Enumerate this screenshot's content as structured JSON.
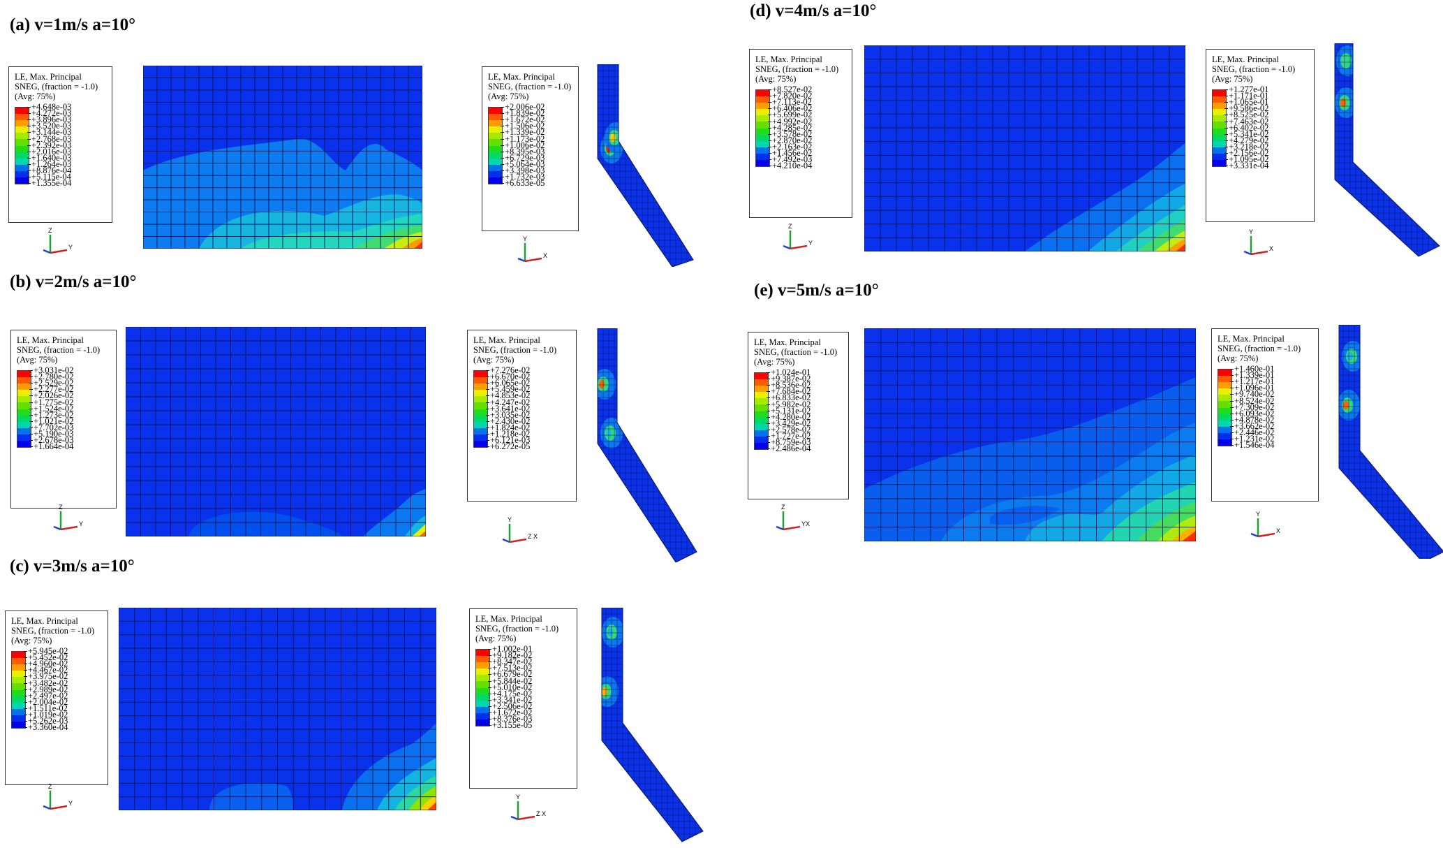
{
  "legend_header": [
    "LE, Max. Principal",
    "SNEG, (fraction = -1.0)",
    "(Avg: 75%)"
  ],
  "legend_colors": [
    "#ff0000",
    "#ff5a00",
    "#ff9d00",
    "#ffd000",
    "#e8f000",
    "#a6ea00",
    "#63e000",
    "#1fdd1c",
    "#00da64",
    "#00d6b0",
    "#00b2e6",
    "#0072ea",
    "#0030ee",
    "#0000ee"
  ],
  "panels": [
    {
      "id": "a",
      "title": "(a) v=1m/s a=10°",
      "triad_left": "Z Y",
      "triad_right": "Y X",
      "legend_left": [
        "+4.648e-03",
        "+4.272e-03",
        "+3.896e-03",
        "+3.520e-03",
        "+3.144e-03",
        "+2.768e-03",
        "+2.392e-03",
        "+2.016e-03",
        "+1.640e-03",
        "+1.264e-03",
        "+8.876e-04",
        "+5.115e-04",
        "+1.355e-04"
      ],
      "legend_right": [
        "+2.006e-02",
        "+1.839e-02",
        "+1.672e-02",
        "+1.506e-02",
        "+1.339e-02",
        "+1.173e-02",
        "+1.006e-02",
        "+8.395e-03",
        "+6.729e-03",
        "+5.064e-03",
        "+3.398e-03",
        "+1.732e-03",
        "+6.633e-05"
      ]
    },
    {
      "id": "b",
      "title": "(b) v=2m/s a=10°",
      "triad_left": "Z Y",
      "triad_right": "Y Z X",
      "legend_left": [
        "+3.031e-02",
        "+2.780e-02",
        "+2.529e-02",
        "+2.277e-02",
        "+2.026e-02",
        "+1.775e-02",
        "+1.524e-02",
        "+1.273e-02",
        "+1.021e-02",
        "+7.702e-03",
        "+5.190e-03",
        "+2.678e-03",
        "+1.664e-04"
      ],
      "legend_right": [
        "+7.276e-02",
        "+6.670e-02",
        "+6.065e-02",
        "+5.459e-02",
        "+4.853e-02",
        "+4.247e-02",
        "+3.641e-02",
        "+3.035e-02",
        "+2.430e-02",
        "+1.824e-02",
        "+1.218e-02",
        "+6.121e-03",
        "+6.272e-05"
      ]
    },
    {
      "id": "c",
      "title": "(c) v=3m/s a=10°",
      "triad_left": "Z Y",
      "triad_right": "Y Z X",
      "legend_left": [
        "+5.945e-02",
        "+5.452e-02",
        "+4.960e-02",
        "+4.467e-02",
        "+3.975e-02",
        "+3.482e-02",
        "+2.989e-02",
        "+2.497e-02",
        "+2.004e-02",
        "+1.511e-02",
        "+1.019e-02",
        "+5.262e-03",
        "+3.360e-04"
      ],
      "legend_right": [
        "+1.002e-01",
        "+9.182e-02",
        "+8.347e-02",
        "+7.513e-02",
        "+6.679e-02",
        "+5.844e-02",
        "+5.010e-02",
        "+4.175e-02",
        "+3.341e-02",
        "+2.506e-02",
        "+1.672e-02",
        "+8.376e-03",
        "+3.155e-05"
      ]
    },
    {
      "id": "d",
      "title": "(d) v=4m/s a=10°",
      "triad_left": "Z Y",
      "triad_right": "Y X",
      "legend_left": [
        "+8.527e-02",
        "+7.820e-02",
        "+7.113e-02",
        "+6.406e-02",
        "+5.699e-02",
        "+4.992e-02",
        "+4.285e-02",
        "+3.578e-02",
        "+2.870e-02",
        "+2.163e-02",
        "+1.456e-02",
        "+7.492e-03",
        "+4.210e-04"
      ],
      "legend_right": [
        "+1.277e-01",
        "+1.171e-01",
        "+1.065e-01",
        "+9.586e-02",
        "+8.525e-02",
        "+7.463e-02",
        "+6.402e-02",
        "+5.341e-02",
        "+4.279e-02",
        "+3.218e-02",
        "+2.156e-02",
        "+1.095e-02",
        "+3.331e-04"
      ]
    },
    {
      "id": "e",
      "title": "(e) v=5m/s a=10°",
      "triad_left": "Z YX",
      "triad_right": "Y X",
      "legend_left": [
        "+1.024e-01",
        "+9.387e-02",
        "+8.536e-02",
        "+7.684e-02",
        "+6.833e-02",
        "+5.982e-02",
        "+5.131e-02",
        "+4.280e-02",
        "+3.429e-02",
        "+2.578e-02",
        "+1.727e-02",
        "+8.759e-03",
        "+2.486e-04"
      ],
      "legend_right": [
        "+1.460e-01",
        "+1.339e-01",
        "+1.217e-01",
        "+1.096e-01",
        "+9.740e-02",
        "+8.524e-02",
        "+7.309e-02",
        "+6.093e-02",
        "+4.878e-02",
        "+3.662e-02",
        "+2.446e-02",
        "+1.231e-02",
        "+1.546e-04"
      ]
    }
  ]
}
